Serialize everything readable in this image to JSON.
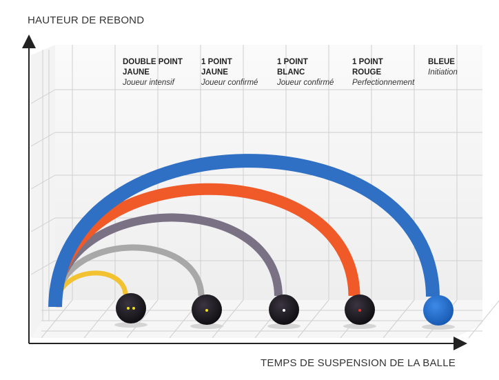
{
  "y_axis_label": "HAUTEUR DE REBOND",
  "x_axis_label": "TEMPS DE SUSPENSION DE LA BALLE",
  "balls": [
    {
      "line1": "DOUBLE POINT",
      "line2": "JAUNE",
      "level": "Joueur intensif",
      "arc_color": "#f2c230",
      "dot_color": "#f2e21a",
      "dots": 2,
      "ball_color": "#151218"
    },
    {
      "line1": "1 POINT",
      "line2": "JAUNE",
      "level": "Joueur confirmé",
      "arc_color": "#a8a8a8",
      "dot_color": "#f2e21a",
      "dots": 1,
      "ball_color": "#151218"
    },
    {
      "line1": "1 POINT",
      "line2": "BLANC",
      "level": "Joueur confirmé",
      "arc_color": "#7a7184",
      "dot_color": "#ffffff",
      "dots": 1,
      "ball_color": "#151218"
    },
    {
      "line1": "1 POINT",
      "line2": "ROUGE",
      "level": "Perfectionnement",
      "arc_color": "#f05a28",
      "dot_color": "#e8332a",
      "dots": 1,
      "ball_color": "#151218"
    },
    {
      "line1": "BLEUE",
      "line2": "",
      "level": "Initiation",
      "arc_color": "#2f6fc4",
      "dot_color": "",
      "dots": 0,
      "ball_color": "#1f6ccf"
    }
  ]
}
